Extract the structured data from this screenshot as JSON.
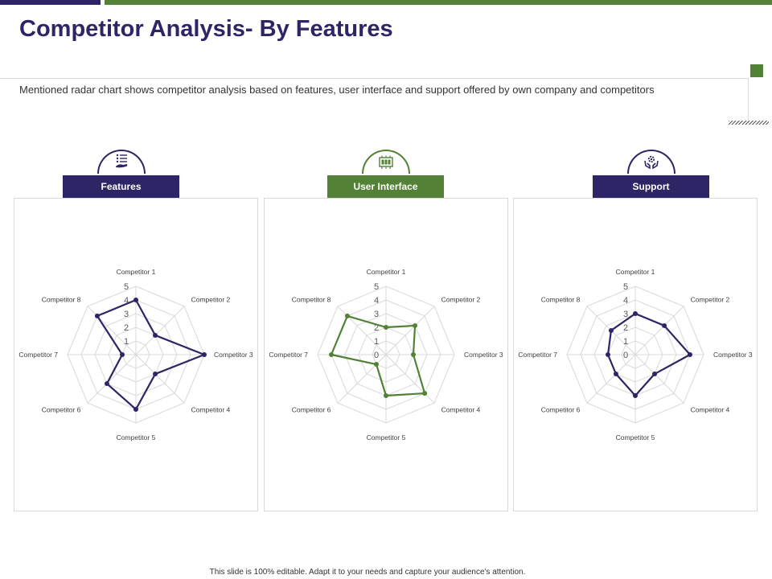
{
  "title": "Competitor Analysis- By Features",
  "description": "Mentioned radar chart shows competitor analysis based on features, user interface and support offered by own company and competitors",
  "footer": "This slide is 100% editable. Adapt it to your needs and capture your audience's attention.",
  "sections": [
    {
      "label": "Features",
      "icon": "list-hand-icon",
      "color": "#2e2566"
    },
    {
      "label": "User Interface",
      "icon": "interface-screen-icon",
      "color": "#538135"
    },
    {
      "label": "Support",
      "icon": "support-hands-gear-icon",
      "color": "#2e2566"
    }
  ],
  "chart_data": [
    {
      "type": "radar",
      "categories": [
        "Competitor 1",
        "Competitor 2",
        "Competitor 3",
        "Competitor 4",
        "Competitor 5",
        "Competitor 6",
        "Competitor 7",
        "Competitor 8"
      ],
      "ticks": [
        "1",
        "2",
        "3",
        "4",
        "5"
      ],
      "rlim": [
        0,
        5
      ],
      "series": [
        {
          "values": [
            4,
            2,
            5,
            2,
            4,
            3,
            1,
            4
          ],
          "color": "#2e2566"
        }
      ]
    },
    {
      "type": "radar",
      "categories": [
        "Competitor 1",
        "Competitor 2",
        "Competitor 3",
        "Competitor 4",
        "Competitor 5",
        "Competitor 6",
        "Competitor 7",
        "Competitor 8"
      ],
      "ticks": [
        "0",
        "1",
        "2",
        "3",
        "4",
        "5"
      ],
      "rlim": [
        0,
        5
      ],
      "series": [
        {
          "values": [
            2,
            3,
            2,
            4,
            3,
            1,
            4,
            4
          ],
          "color": "#538135"
        }
      ]
    },
    {
      "type": "radar",
      "categories": [
        "Competitor 1",
        "Competitor 2",
        "Competitor 3",
        "Competitor 4",
        "Competitor 5",
        "Competitor 6",
        "Competitor 7",
        "Competitor 8"
      ],
      "ticks": [
        "0",
        "1",
        "2",
        "3",
        "4",
        "5"
      ],
      "rlim": [
        0,
        5
      ],
      "series": [
        {
          "values": [
            3,
            3,
            4,
            2,
            3,
            2,
            2,
            2.5
          ],
          "color": "#2e2566"
        }
      ]
    }
  ]
}
